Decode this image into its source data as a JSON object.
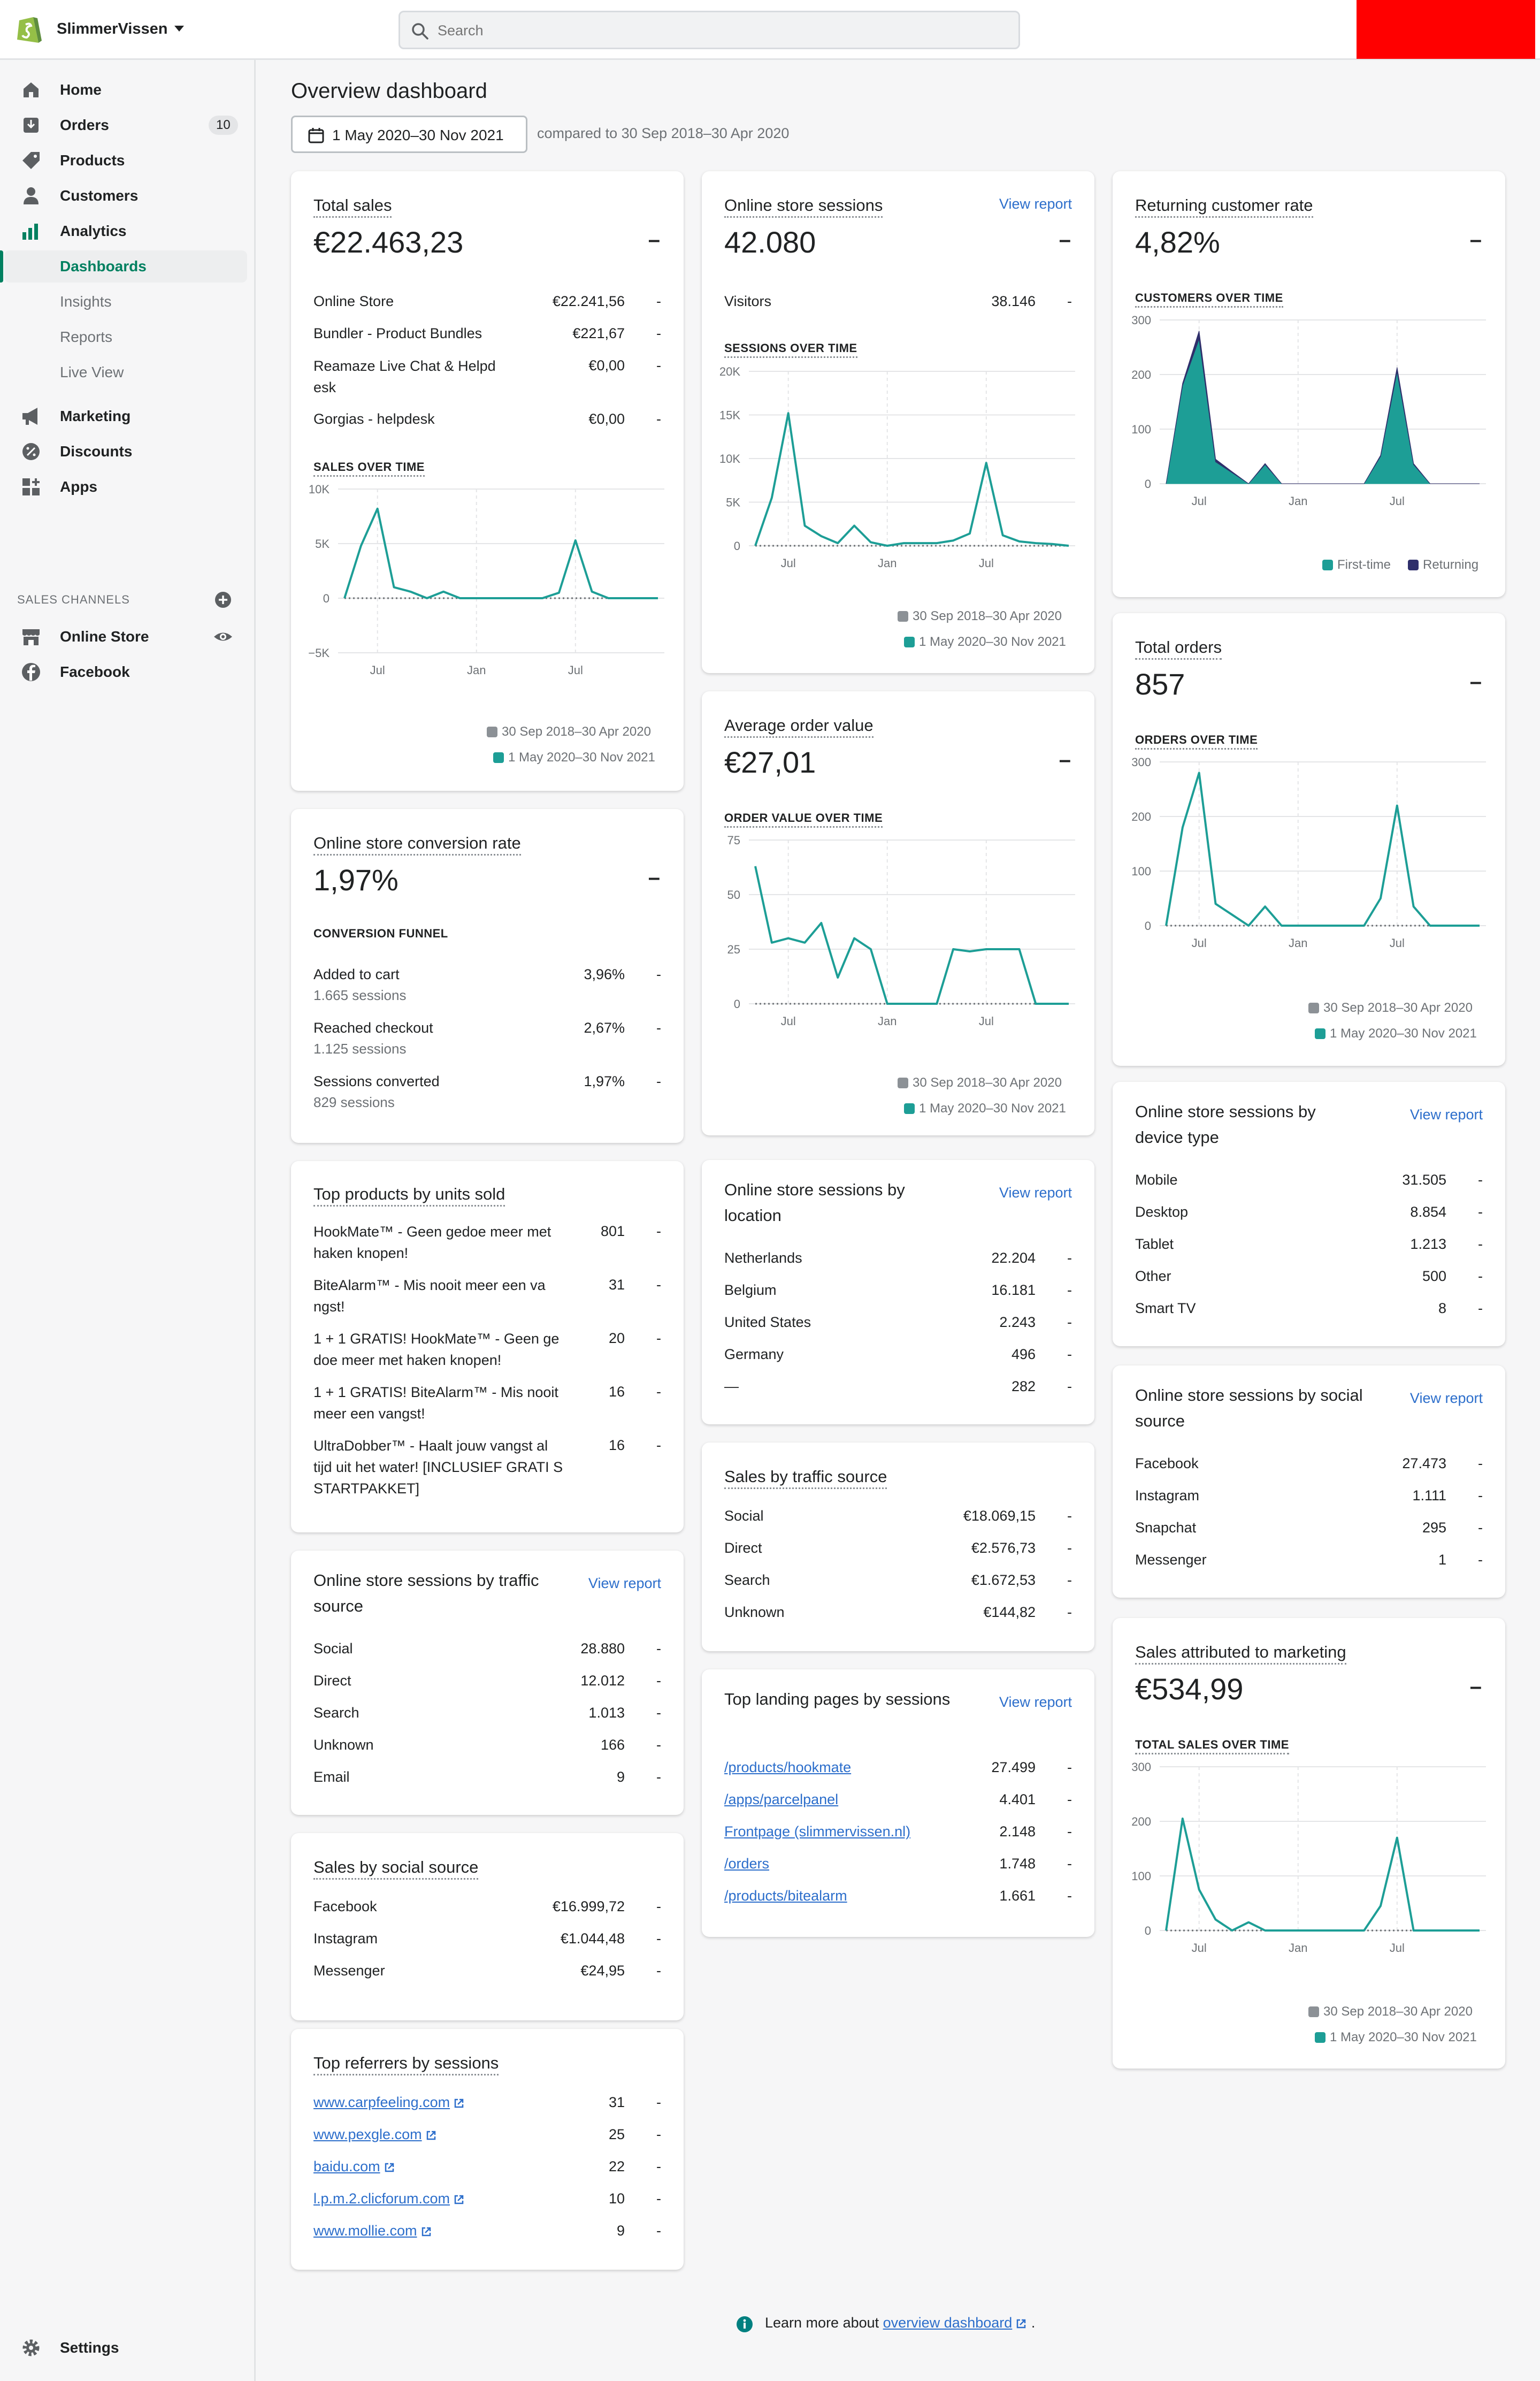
{
  "topbar": {
    "store_name": "SlimmerVissen",
    "search_placeholder": "Search"
  },
  "sidebar": {
    "items": [
      {
        "label": "Home"
      },
      {
        "label": "Orders",
        "badge": "10"
      },
      {
        "label": "Products"
      },
      {
        "label": "Customers"
      },
      {
        "label": "Analytics"
      },
      {
        "label": "Dashboards"
      },
      {
        "label": "Insights"
      },
      {
        "label": "Reports"
      },
      {
        "label": "Live View"
      },
      {
        "label": "Marketing"
      },
      {
        "label": "Discounts"
      },
      {
        "label": "Apps"
      }
    ],
    "channels_heading": "SALES CHANNELS",
    "channels": [
      {
        "label": "Online Store"
      },
      {
        "label": "Facebook"
      }
    ],
    "settings": "Settings"
  },
  "page": {
    "title": "Overview dashboard",
    "date_range": "1 May 2020–30 Nov 2021",
    "compare": "compared to 30 Sep 2018–30 Apr 2020",
    "legend_prev": "30 Sep 2018–30 Apr 2020",
    "legend_curr": "1 May 2020–30 Nov 2021",
    "dash": "–",
    "view_report": "View report",
    "row_dash": "-"
  },
  "colors": {
    "accent": "#008060",
    "series_current": "#1d9e96",
    "series_prev": "#8c9196",
    "returning": "#2f2f6b",
    "link": "#2c6ecb",
    "redbox": "#ff0000"
  },
  "total_sales": {
    "title": "Total sales",
    "value": "€22.463,23",
    "rows": [
      {
        "k": "Online Store",
        "v": "€22.241,56"
      },
      {
        "k": "Bundler - Product Bundles",
        "v": "€221,67"
      },
      {
        "k": "Reamaze Live Chat & Helpd esk",
        "v": "€0,00"
      },
      {
        "k": "Gorgias - helpdesk",
        "v": "€0,00"
      }
    ],
    "chart_title": "SALES OVER TIME"
  },
  "conversion": {
    "title": "Online store conversion rate",
    "value": "1,97%",
    "funnel_title": "CONVERSION FUNNEL",
    "rows": [
      {
        "k": "Added to cart",
        "s": "1.665 sessions",
        "v": "3,96%"
      },
      {
        "k": "Reached checkout",
        "s": "1.125 sessions",
        "v": "2,67%"
      },
      {
        "k": "Sessions converted",
        "s": "829 sessions",
        "v": "1,97%"
      }
    ]
  },
  "top_products": {
    "title": "Top products by units sold",
    "rows": [
      {
        "k": "HookMate™ - Geen gedoe meer met haken knopen!",
        "v": "801"
      },
      {
        "k": "BiteAlarm™ - Mis nooit meer een va ngst!",
        "v": "31"
      },
      {
        "k": "1 + 1 GRATIS! HookMate™ - Geen ge doe meer met haken knopen!",
        "v": "20"
      },
      {
        "k": "1 + 1 GRATIS! BiteAlarm™ - Mis nooit meer een vangst!",
        "v": "16"
      },
      {
        "k": "UltraDobber™ - Haalt jouw vangst al tijd uit het water! [INCLUSIEF GRATI S STARTPAKKET]",
        "v": "16"
      }
    ]
  },
  "sessions_traffic": {
    "title": "Online store sessions by traffic source",
    "rows": [
      {
        "k": "Social",
        "v": "28.880"
      },
      {
        "k": "Direct",
        "v": "12.012"
      },
      {
        "k": "Search",
        "v": "1.013"
      },
      {
        "k": "Unknown",
        "v": "166"
      },
      {
        "k": "Email",
        "v": "9"
      }
    ]
  },
  "sales_social": {
    "title": "Sales by social source",
    "rows": [
      {
        "k": "Facebook",
        "v": "€16.999,72"
      },
      {
        "k": "Instagram",
        "v": "€1.044,48"
      },
      {
        "k": "Messenger",
        "v": "€24,95"
      }
    ]
  },
  "referrers": {
    "title": "Top referrers by sessions",
    "rows": [
      {
        "k": "www.carpfeeling.com",
        "v": "31"
      },
      {
        "k": "www.pexgle.com",
        "v": "25"
      },
      {
        "k": "baidu.com",
        "v": "22"
      },
      {
        "k": "l.p.m.2.clicforum.com",
        "v": "10"
      },
      {
        "k": "www.mollie.com",
        "v": "9"
      }
    ]
  },
  "store_sessions": {
    "title": "Online store sessions",
    "value": "42.080",
    "rows": [
      {
        "k": "Visitors",
        "v": "38.146"
      }
    ],
    "chart_title": "SESSIONS OVER TIME"
  },
  "aov": {
    "title": "Average order value",
    "value": "€27,01",
    "chart_title": "ORDER VALUE OVER TIME"
  },
  "sessions_location": {
    "title": "Online store sessions by location",
    "rows": [
      {
        "k": "Netherlands",
        "v": "22.204"
      },
      {
        "k": "Belgium",
        "v": "16.181"
      },
      {
        "k": "United States",
        "v": "2.243"
      },
      {
        "k": "Germany",
        "v": "496"
      },
      {
        "k": "—",
        "v": "282"
      }
    ]
  },
  "sales_traffic": {
    "title": "Sales by traffic source",
    "rows": [
      {
        "k": "Social",
        "v": "€18.069,15"
      },
      {
        "k": "Direct",
        "v": "€2.576,73"
      },
      {
        "k": "Search",
        "v": "€1.672,53"
      },
      {
        "k": "Unknown",
        "v": "€144,82"
      }
    ]
  },
  "landing": {
    "title": "Top landing pages by sessions",
    "rows": [
      {
        "k": "/products/hookmate",
        "v": "27.499"
      },
      {
        "k": "/apps/parcelpanel",
        "v": "4.401"
      },
      {
        "k": "Frontpage (slimmervissen.nl)",
        "v": "2.148"
      },
      {
        "k": "/orders",
        "v": "1.748"
      },
      {
        "k": "/products/bitealarm",
        "v": "1.661"
      }
    ]
  },
  "returning": {
    "title": "Returning customer rate",
    "value": "4,82%",
    "chart_title": "CUSTOMERS OVER TIME",
    "legend_first": "First-time",
    "legend_returning": "Returning"
  },
  "total_orders": {
    "title": "Total orders",
    "value": "857",
    "chart_title": "ORDERS OVER TIME"
  },
  "sessions_device": {
    "title": "Online store sessions by device type",
    "rows": [
      {
        "k": "Mobile",
        "v": "31.505"
      },
      {
        "k": "Desktop",
        "v": "8.854"
      },
      {
        "k": "Tablet",
        "v": "1.213"
      },
      {
        "k": "Other",
        "v": "500"
      },
      {
        "k": "Smart TV",
        "v": "8"
      }
    ]
  },
  "sessions_social": {
    "title": "Online store sessions by social source",
    "rows": [
      {
        "k": "Facebook",
        "v": "27.473"
      },
      {
        "k": "Instagram",
        "v": "1.111"
      },
      {
        "k": "Snapchat",
        "v": "295"
      },
      {
        "k": "Messenger",
        "v": "1"
      }
    ]
  },
  "marketing": {
    "title": "Sales attributed to marketing",
    "value": "€534,99",
    "chart_title": "TOTAL SALES OVER TIME"
  },
  "footer": {
    "text": "Learn more about",
    "link": "overview dashboard",
    "period": "."
  },
  "chart_data": [
    {
      "id": "sales",
      "type": "line",
      "ylim": [
        -5000,
        10000
      ],
      "yticks": [
        "10K",
        "5K",
        "0",
        "−5K"
      ],
      "ytick_values": [
        10000,
        5000,
        0,
        -5000
      ],
      "xticks": [
        "Jul",
        "Jan",
        "Jul"
      ],
      "xtick_index": [
        2,
        8,
        14
      ],
      "series": [
        {
          "name": "1 May 2020–30 Nov 2021",
          "values": [
            0,
            4800,
            8200,
            1000,
            600,
            0,
            600,
            0,
            0,
            0,
            0,
            0,
            0,
            500,
            5300,
            600,
            0,
            0,
            0,
            0
          ]
        }
      ]
    },
    {
      "id": "sessions",
      "type": "line",
      "ylim": [
        0,
        20000
      ],
      "yticks": [
        "20K",
        "15K",
        "10K",
        "5K",
        "0"
      ],
      "ytick_values": [
        20000,
        15000,
        10000,
        5000,
        0
      ],
      "xticks": [
        "Jul",
        "Jan",
        "Jul"
      ],
      "xtick_index": [
        2,
        8,
        14
      ],
      "series": [
        {
          "name": "1 May 2020–30 Nov 2021",
          "values": [
            0,
            5500,
            15200,
            2300,
            1100,
            300,
            2300,
            400,
            0,
            300,
            300,
            300,
            600,
            1400,
            9500,
            1200,
            500,
            300,
            200,
            0
          ]
        }
      ]
    },
    {
      "id": "aov",
      "type": "line",
      "ylim": [
        0,
        75
      ],
      "yticks": [
        "75",
        "50",
        "25",
        "0"
      ],
      "ytick_values": [
        75,
        50,
        25,
        0
      ],
      "xticks": [
        "Jul",
        "Jan",
        "Jul"
      ],
      "xtick_index": [
        2,
        8,
        14
      ],
      "series": [
        {
          "name": "1 May 2020–30 Nov 2021",
          "values": [
            63,
            28,
            30,
            28,
            37,
            12,
            30,
            25,
            0,
            0,
            0,
            0,
            25,
            24,
            25,
            25,
            25,
            0,
            0,
            0
          ]
        }
      ]
    },
    {
      "id": "customers",
      "type": "area",
      "ylim": [
        0,
        300
      ],
      "yticks": [
        "300",
        "200",
        "100",
        "0"
      ],
      "ytick_values": [
        300,
        200,
        100,
        0
      ],
      "xticks": [
        "Jul",
        "Jan",
        "Jul"
      ],
      "xtick_index": [
        2,
        8,
        14
      ],
      "series": [
        {
          "name": "First-time",
          "values": [
            0,
            180,
            265,
            40,
            20,
            0,
            35,
            0,
            0,
            0,
            0,
            0,
            0,
            50,
            205,
            35,
            0,
            0,
            0,
            0
          ]
        },
        {
          "name": "Returning",
          "values": [
            0,
            4,
            15,
            5,
            2,
            0,
            2,
            0,
            0,
            0,
            0,
            0,
            0,
            2,
            8,
            2,
            0,
            0,
            0,
            0
          ]
        }
      ]
    },
    {
      "id": "orders",
      "type": "line",
      "ylim": [
        0,
        300
      ],
      "yticks": [
        "300",
        "200",
        "100",
        "0"
      ],
      "ytick_values": [
        300,
        200,
        100,
        0
      ],
      "xticks": [
        "Jul",
        "Jan",
        "Jul"
      ],
      "xtick_index": [
        2,
        8,
        14
      ],
      "series": [
        {
          "name": "1 May 2020–30 Nov 2021",
          "values": [
            0,
            180,
            280,
            40,
            20,
            0,
            35,
            0,
            0,
            0,
            0,
            0,
            0,
            50,
            220,
            35,
            0,
            0,
            0,
            0
          ]
        }
      ]
    },
    {
      "id": "marketing",
      "type": "line",
      "ylim": [
        0,
        300
      ],
      "yticks": [
        "300",
        "200",
        "100",
        "0"
      ],
      "ytick_values": [
        300,
        200,
        100,
        0
      ],
      "xticks": [
        "Jul",
        "Jan",
        "Jul"
      ],
      "xtick_index": [
        2,
        8,
        14
      ],
      "series": [
        {
          "name": "1 May 2020–30 Nov 2021",
          "values": [
            0,
            205,
            75,
            20,
            0,
            15,
            0,
            0,
            0,
            0,
            0,
            0,
            0,
            45,
            170,
            0,
            0,
            0,
            0,
            0
          ]
        }
      ]
    }
  ]
}
